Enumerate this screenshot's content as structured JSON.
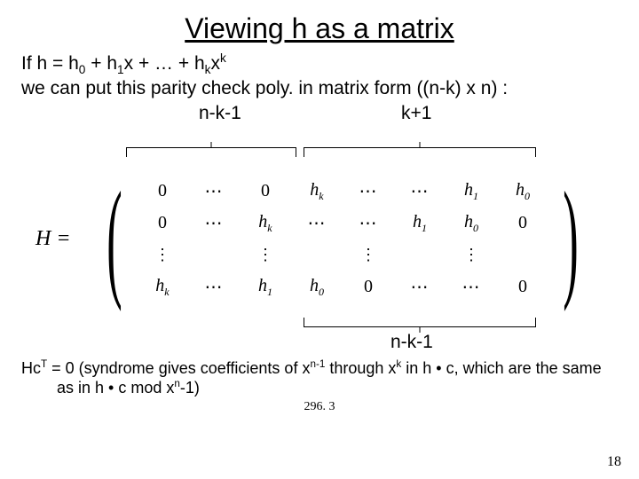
{
  "title": "Viewing h as a matrix",
  "line1_a": "If h = h",
  "line1_b": " + h",
  "line1_c": "x + … + h",
  "line1_d": "x",
  "sub0": "0",
  "sub1": "1",
  "subk": "k",
  "supk": "k",
  "line2": "we can put this parity check poly. in matrix form ((n-k) x n) :",
  "label_nk1": "n-k-1",
  "label_kp1": "k+1",
  "Heq": "H =",
  "matrix": {
    "cells": [
      [
        "0",
        "⋯",
        "0",
        "h_k",
        "⋯",
        "h_1",
        "h_0"
      ],
      [
        "0",
        "⋯",
        "h_k",
        "⋯",
        "h_1",
        "h_0",
        "0"
      ],
      [
        "⋮",
        "",
        "⋮",
        "",
        "⋮",
        "",
        "⋮"
      ],
      [
        "h_k",
        "⋯",
        "h_1",
        "h_0",
        "0",
        "⋯",
        "0"
      ]
    ]
  },
  "footer_a": "Hc",
  "footer_T": "T",
  "footer_b": " = 0 (syndrome gives coefficients of x",
  "footer_n1": "n-1",
  "footer_c": " through x",
  "footer_k": "k",
  "footer_d": " in h • c, which are the same as in h • c mod x",
  "footer_n": "n",
  "footer_e": "-1)",
  "course": "296. 3",
  "pagenum": "18"
}
